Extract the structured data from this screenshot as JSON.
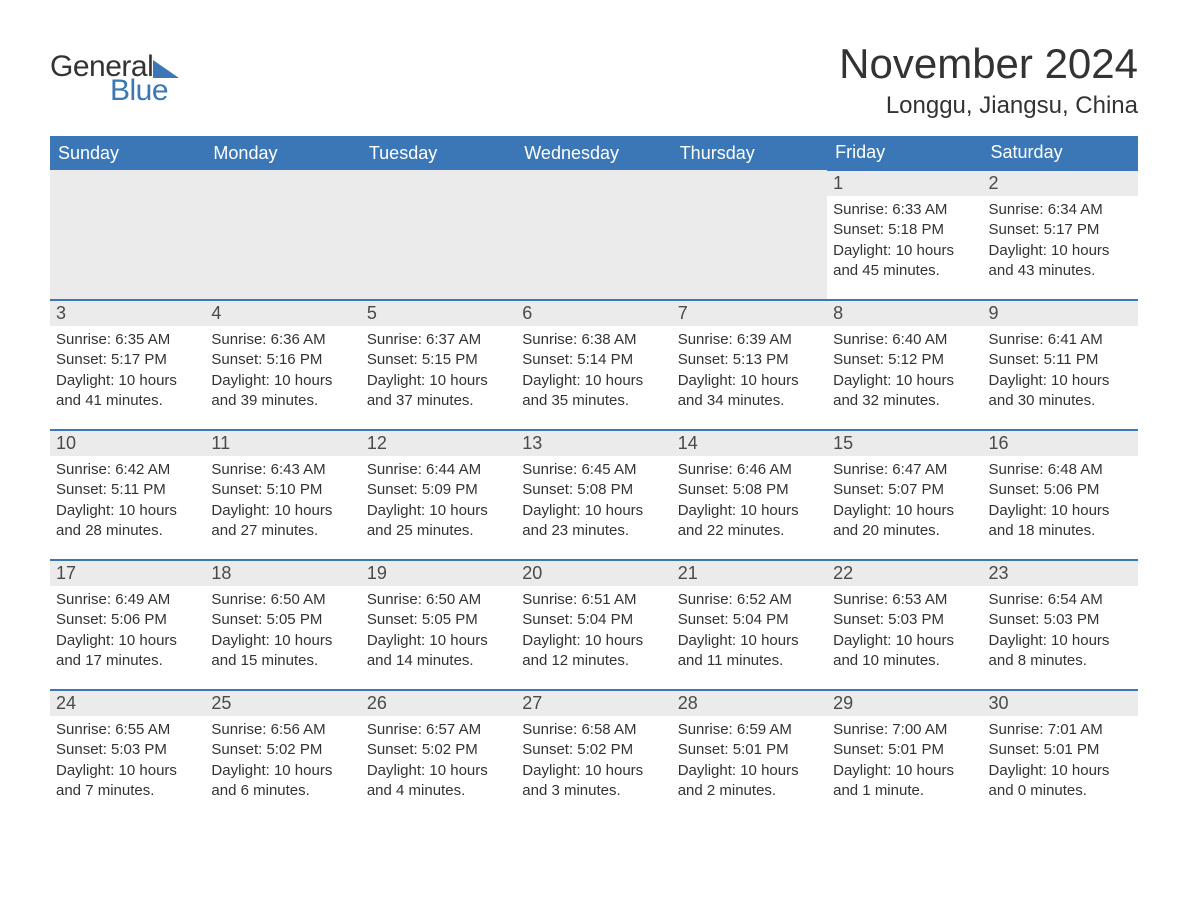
{
  "brand": {
    "word1": "General",
    "word2": "Blue",
    "accent_color": "#3b77b6"
  },
  "title": "November 2024",
  "location": "Longgu, Jiangsu, China",
  "colors": {
    "header_bg": "#3b77b6",
    "header_text": "#ffffff",
    "daynum_bg": "#ebebeb",
    "body_text": "#333333",
    "rule": "#3b77b6",
    "page_bg": "#ffffff"
  },
  "fonts": {
    "title_pt": 42,
    "location_pt": 24,
    "header_pt": 18,
    "daynum_pt": 18,
    "body_pt": 15
  },
  "weekdays": [
    "Sunday",
    "Monday",
    "Tuesday",
    "Wednesday",
    "Thursday",
    "Friday",
    "Saturday"
  ],
  "weeks": [
    [
      null,
      null,
      null,
      null,
      null,
      {
        "n": "1",
        "sunrise": "Sunrise: 6:33 AM",
        "sunset": "Sunset: 5:18 PM",
        "daylight": "Daylight: 10 hours and 45 minutes."
      },
      {
        "n": "2",
        "sunrise": "Sunrise: 6:34 AM",
        "sunset": "Sunset: 5:17 PM",
        "daylight": "Daylight: 10 hours and 43 minutes."
      }
    ],
    [
      {
        "n": "3",
        "sunrise": "Sunrise: 6:35 AM",
        "sunset": "Sunset: 5:17 PM",
        "daylight": "Daylight: 10 hours and 41 minutes."
      },
      {
        "n": "4",
        "sunrise": "Sunrise: 6:36 AM",
        "sunset": "Sunset: 5:16 PM",
        "daylight": "Daylight: 10 hours and 39 minutes."
      },
      {
        "n": "5",
        "sunrise": "Sunrise: 6:37 AM",
        "sunset": "Sunset: 5:15 PM",
        "daylight": "Daylight: 10 hours and 37 minutes."
      },
      {
        "n": "6",
        "sunrise": "Sunrise: 6:38 AM",
        "sunset": "Sunset: 5:14 PM",
        "daylight": "Daylight: 10 hours and 35 minutes."
      },
      {
        "n": "7",
        "sunrise": "Sunrise: 6:39 AM",
        "sunset": "Sunset: 5:13 PM",
        "daylight": "Daylight: 10 hours and 34 minutes."
      },
      {
        "n": "8",
        "sunrise": "Sunrise: 6:40 AM",
        "sunset": "Sunset: 5:12 PM",
        "daylight": "Daylight: 10 hours and 32 minutes."
      },
      {
        "n": "9",
        "sunrise": "Sunrise: 6:41 AM",
        "sunset": "Sunset: 5:11 PM",
        "daylight": "Daylight: 10 hours and 30 minutes."
      }
    ],
    [
      {
        "n": "10",
        "sunrise": "Sunrise: 6:42 AM",
        "sunset": "Sunset: 5:11 PM",
        "daylight": "Daylight: 10 hours and 28 minutes."
      },
      {
        "n": "11",
        "sunrise": "Sunrise: 6:43 AM",
        "sunset": "Sunset: 5:10 PM",
        "daylight": "Daylight: 10 hours and 27 minutes."
      },
      {
        "n": "12",
        "sunrise": "Sunrise: 6:44 AM",
        "sunset": "Sunset: 5:09 PM",
        "daylight": "Daylight: 10 hours and 25 minutes."
      },
      {
        "n": "13",
        "sunrise": "Sunrise: 6:45 AM",
        "sunset": "Sunset: 5:08 PM",
        "daylight": "Daylight: 10 hours and 23 minutes."
      },
      {
        "n": "14",
        "sunrise": "Sunrise: 6:46 AM",
        "sunset": "Sunset: 5:08 PM",
        "daylight": "Daylight: 10 hours and 22 minutes."
      },
      {
        "n": "15",
        "sunrise": "Sunrise: 6:47 AM",
        "sunset": "Sunset: 5:07 PM",
        "daylight": "Daylight: 10 hours and 20 minutes."
      },
      {
        "n": "16",
        "sunrise": "Sunrise: 6:48 AM",
        "sunset": "Sunset: 5:06 PM",
        "daylight": "Daylight: 10 hours and 18 minutes."
      }
    ],
    [
      {
        "n": "17",
        "sunrise": "Sunrise: 6:49 AM",
        "sunset": "Sunset: 5:06 PM",
        "daylight": "Daylight: 10 hours and 17 minutes."
      },
      {
        "n": "18",
        "sunrise": "Sunrise: 6:50 AM",
        "sunset": "Sunset: 5:05 PM",
        "daylight": "Daylight: 10 hours and 15 minutes."
      },
      {
        "n": "19",
        "sunrise": "Sunrise: 6:50 AM",
        "sunset": "Sunset: 5:05 PM",
        "daylight": "Daylight: 10 hours and 14 minutes."
      },
      {
        "n": "20",
        "sunrise": "Sunrise: 6:51 AM",
        "sunset": "Sunset: 5:04 PM",
        "daylight": "Daylight: 10 hours and 12 minutes."
      },
      {
        "n": "21",
        "sunrise": "Sunrise: 6:52 AM",
        "sunset": "Sunset: 5:04 PM",
        "daylight": "Daylight: 10 hours and 11 minutes."
      },
      {
        "n": "22",
        "sunrise": "Sunrise: 6:53 AM",
        "sunset": "Sunset: 5:03 PM",
        "daylight": "Daylight: 10 hours and 10 minutes."
      },
      {
        "n": "23",
        "sunrise": "Sunrise: 6:54 AM",
        "sunset": "Sunset: 5:03 PM",
        "daylight": "Daylight: 10 hours and 8 minutes."
      }
    ],
    [
      {
        "n": "24",
        "sunrise": "Sunrise: 6:55 AM",
        "sunset": "Sunset: 5:03 PM",
        "daylight": "Daylight: 10 hours and 7 minutes."
      },
      {
        "n": "25",
        "sunrise": "Sunrise: 6:56 AM",
        "sunset": "Sunset: 5:02 PM",
        "daylight": "Daylight: 10 hours and 6 minutes."
      },
      {
        "n": "26",
        "sunrise": "Sunrise: 6:57 AM",
        "sunset": "Sunset: 5:02 PM",
        "daylight": "Daylight: 10 hours and 4 minutes."
      },
      {
        "n": "27",
        "sunrise": "Sunrise: 6:58 AM",
        "sunset": "Sunset: 5:02 PM",
        "daylight": "Daylight: 10 hours and 3 minutes."
      },
      {
        "n": "28",
        "sunrise": "Sunrise: 6:59 AM",
        "sunset": "Sunset: 5:01 PM",
        "daylight": "Daylight: 10 hours and 2 minutes."
      },
      {
        "n": "29",
        "sunrise": "Sunrise: 7:00 AM",
        "sunset": "Sunset: 5:01 PM",
        "daylight": "Daylight: 10 hours and 1 minute."
      },
      {
        "n": "30",
        "sunrise": "Sunrise: 7:01 AM",
        "sunset": "Sunset: 5:01 PM",
        "daylight": "Daylight: 10 hours and 0 minutes."
      }
    ]
  ]
}
